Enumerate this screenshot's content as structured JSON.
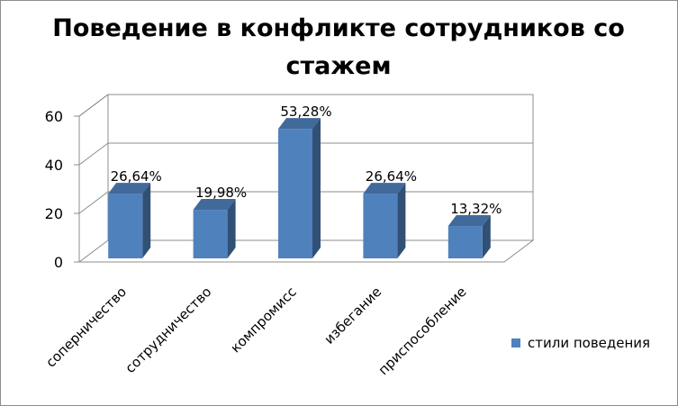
{
  "chart_data": {
    "type": "bar",
    "title_lines": [
      "Поведение в конфликте сотрудников со",
      "стажем"
    ],
    "categories": [
      "соперничество",
      "сотрудничество",
      "компромисс",
      "избегание",
      "приспособление"
    ],
    "series": [
      {
        "name": "стили поведения",
        "values": [
          26.64,
          19.98,
          53.28,
          26.64,
          13.32
        ],
        "labels": [
          "26,64%",
          "19,98%",
          "53,28%",
          "26,64%",
          "13,32%"
        ],
        "color": "#4f81bd"
      }
    ],
    "yticks": [
      "0",
      "20",
      "40",
      "60"
    ],
    "ylim": [
      0,
      60
    ],
    "grid": true,
    "legend_position": "right",
    "three_d": true
  }
}
